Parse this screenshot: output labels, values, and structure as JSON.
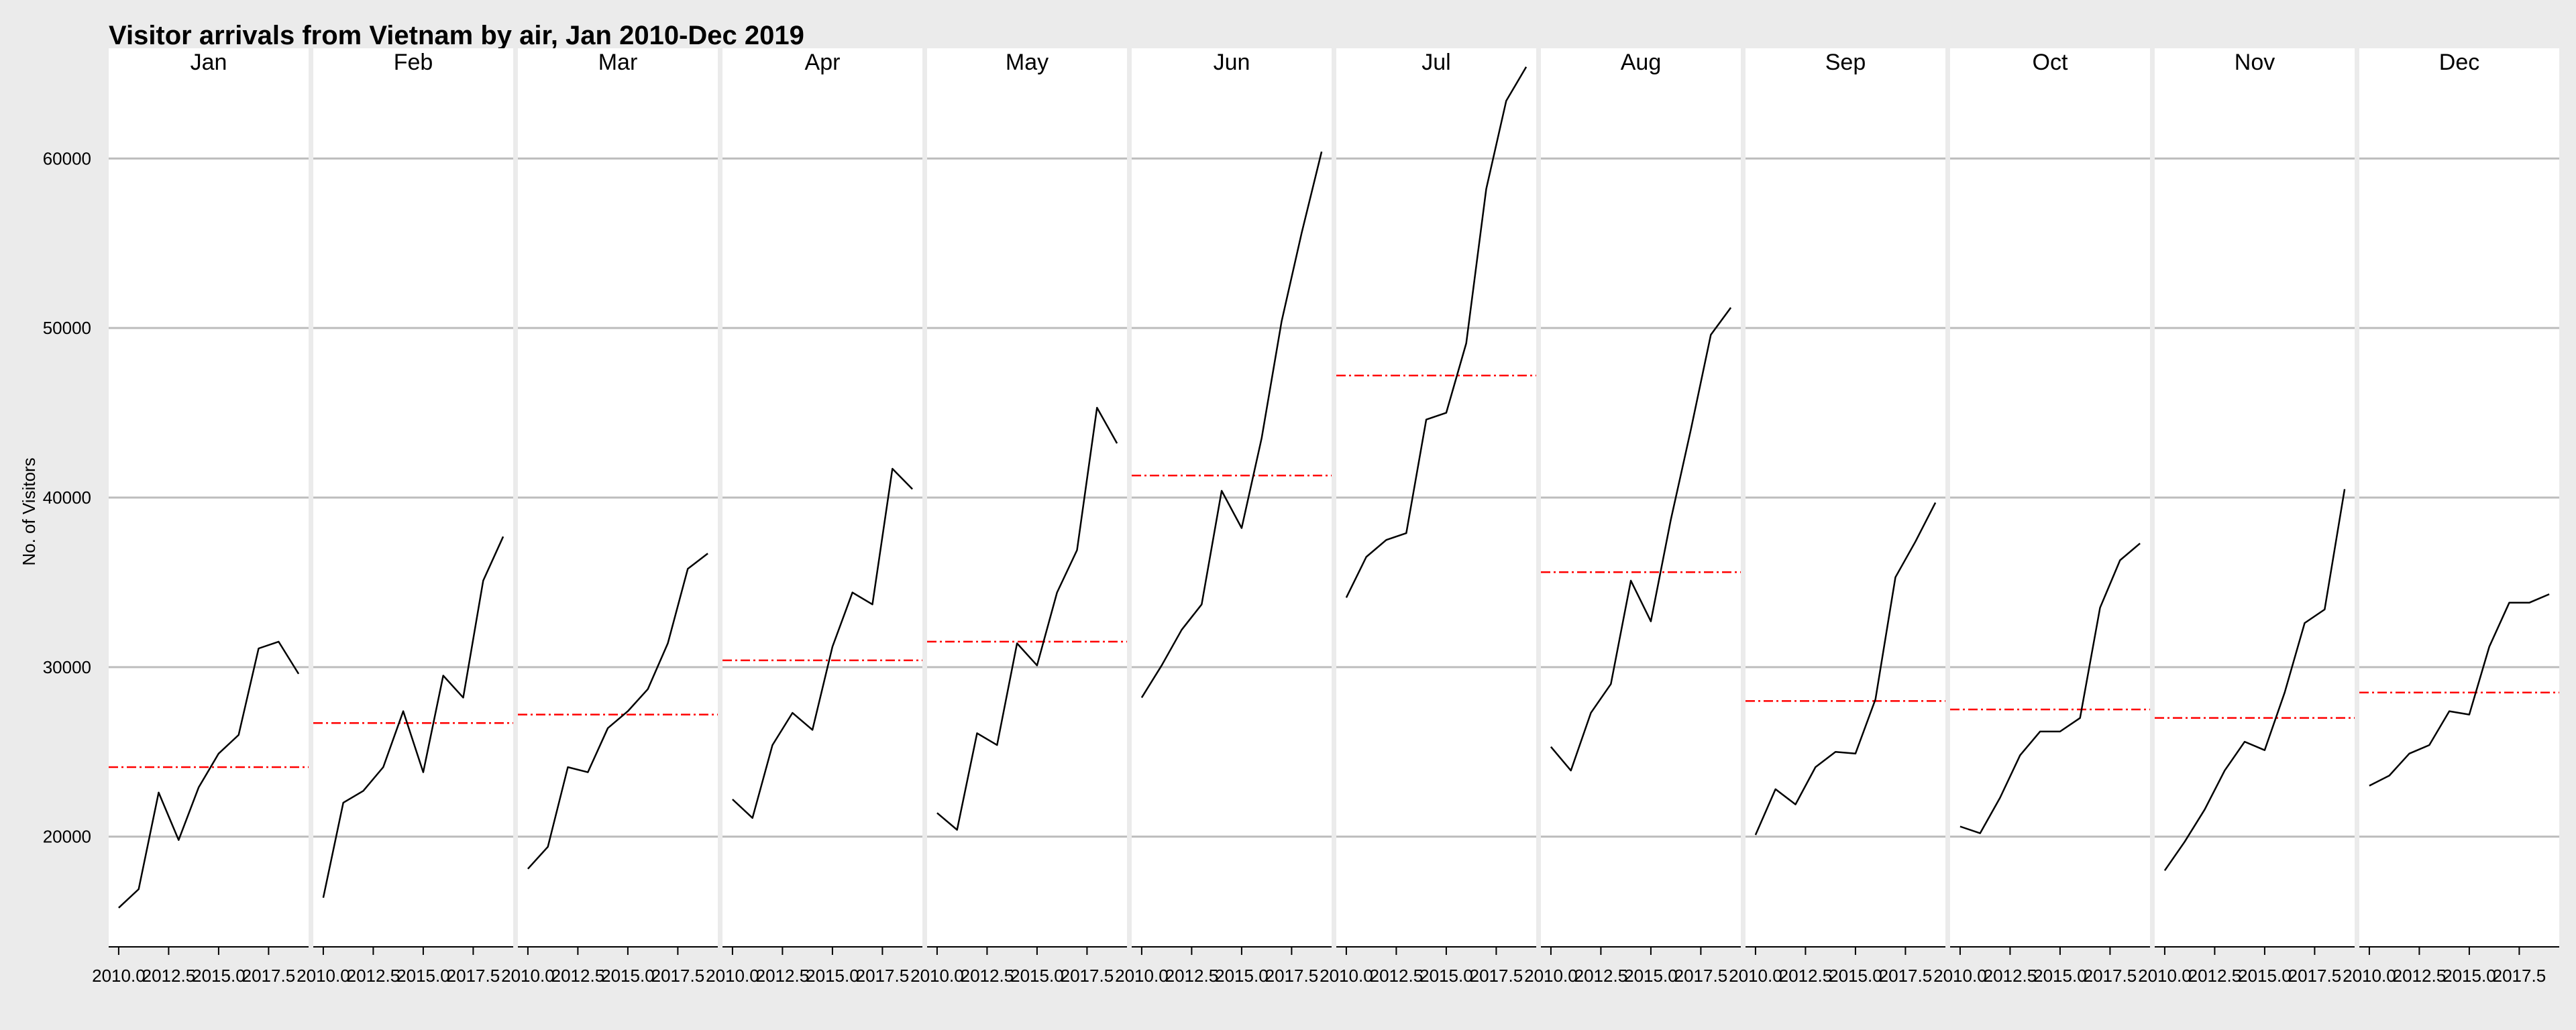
{
  "chart_data": {
    "type": "line",
    "title": "Visitor arrivals from Vietnam by air, Jan 2010-Dec 2019",
    "xlabel": "",
    "ylabel": "No. of Visitors",
    "ylim": [
      13500,
      66500
    ],
    "xlim": [
      2009.5,
      2019.5
    ],
    "y_ticks": [
      20000,
      30000,
      40000,
      50000,
      60000
    ],
    "x_ticks": [
      2010.0,
      2012.5,
      2015.0,
      2017.5
    ],
    "x_tick_labels": [
      "2010.0",
      "2012.5",
      "2015.0",
      "2017.5"
    ],
    "grid": true,
    "facets": [
      "Jan",
      "Feb",
      "Mar",
      "Apr",
      "May",
      "Jun",
      "Jul",
      "Aug",
      "Sep",
      "Oct",
      "Nov",
      "Dec"
    ],
    "x": [
      2010,
      2011,
      2012,
      2013,
      2014,
      2015,
      2016,
      2017,
      2018,
      2019
    ],
    "line_color": "#000000",
    "mean_line_color": "#ff0000",
    "series": [
      {
        "facet": "Jan",
        "values": [
          15800,
          16900,
          22600,
          19800,
          22900,
          24900,
          26000,
          31100,
          31500,
          29600
        ],
        "mean": 24100
      },
      {
        "facet": "Feb",
        "values": [
          16400,
          22000,
          22700,
          24100,
          27400,
          23800,
          29500,
          28200,
          35100,
          37700
        ],
        "mean": 26700
      },
      {
        "facet": "Mar",
        "values": [
          18100,
          19400,
          24100,
          23800,
          26400,
          27400,
          28700,
          31400,
          35800,
          36700
        ],
        "mean": 27200
      },
      {
        "facet": "Apr",
        "values": [
          22200,
          21100,
          25400,
          27300,
          26300,
          31200,
          34400,
          33700,
          41700,
          40500
        ],
        "mean": 30400
      },
      {
        "facet": "May",
        "values": [
          21400,
          20400,
          26100,
          25400,
          31400,
          30100,
          34400,
          36900,
          45300,
          43200
        ],
        "mean": 31500
      },
      {
        "facet": "Jun",
        "values": [
          28200,
          30100,
          32200,
          33700,
          40400,
          38200,
          43500,
          50400,
          55600,
          60400
        ],
        "mean": 41300
      },
      {
        "facet": "Jul",
        "values": [
          34100,
          36500,
          37500,
          37900,
          44600,
          45000,
          49100,
          58200,
          63400,
          65400
        ],
        "mean": 47200
      },
      {
        "facet": "Aug",
        "values": [
          25300,
          23900,
          27300,
          29000,
          35100,
          32700,
          38700,
          44000,
          49600,
          51200
        ],
        "mean": 35600
      },
      {
        "facet": "Sep",
        "values": [
          20100,
          22800,
          21900,
          24100,
          25000,
          24900,
          28100,
          35300,
          37400,
          39700
        ],
        "mean": 28000
      },
      {
        "facet": "Oct",
        "values": [
          20600,
          20200,
          22300,
          24800,
          26200,
          26200,
          27000,
          33500,
          36300,
          37300
        ],
        "mean": 27500
      },
      {
        "facet": "Nov",
        "values": [
          18000,
          19700,
          21600,
          23900,
          25600,
          25100,
          28500,
          32600,
          33400,
          40500
        ],
        "mean": 27000
      },
      {
        "facet": "Dec",
        "values": [
          23000,
          23600,
          24900,
          25400,
          27400,
          27200,
          31200,
          33800,
          33800,
          34300
        ],
        "mean": 28500
      }
    ]
  }
}
